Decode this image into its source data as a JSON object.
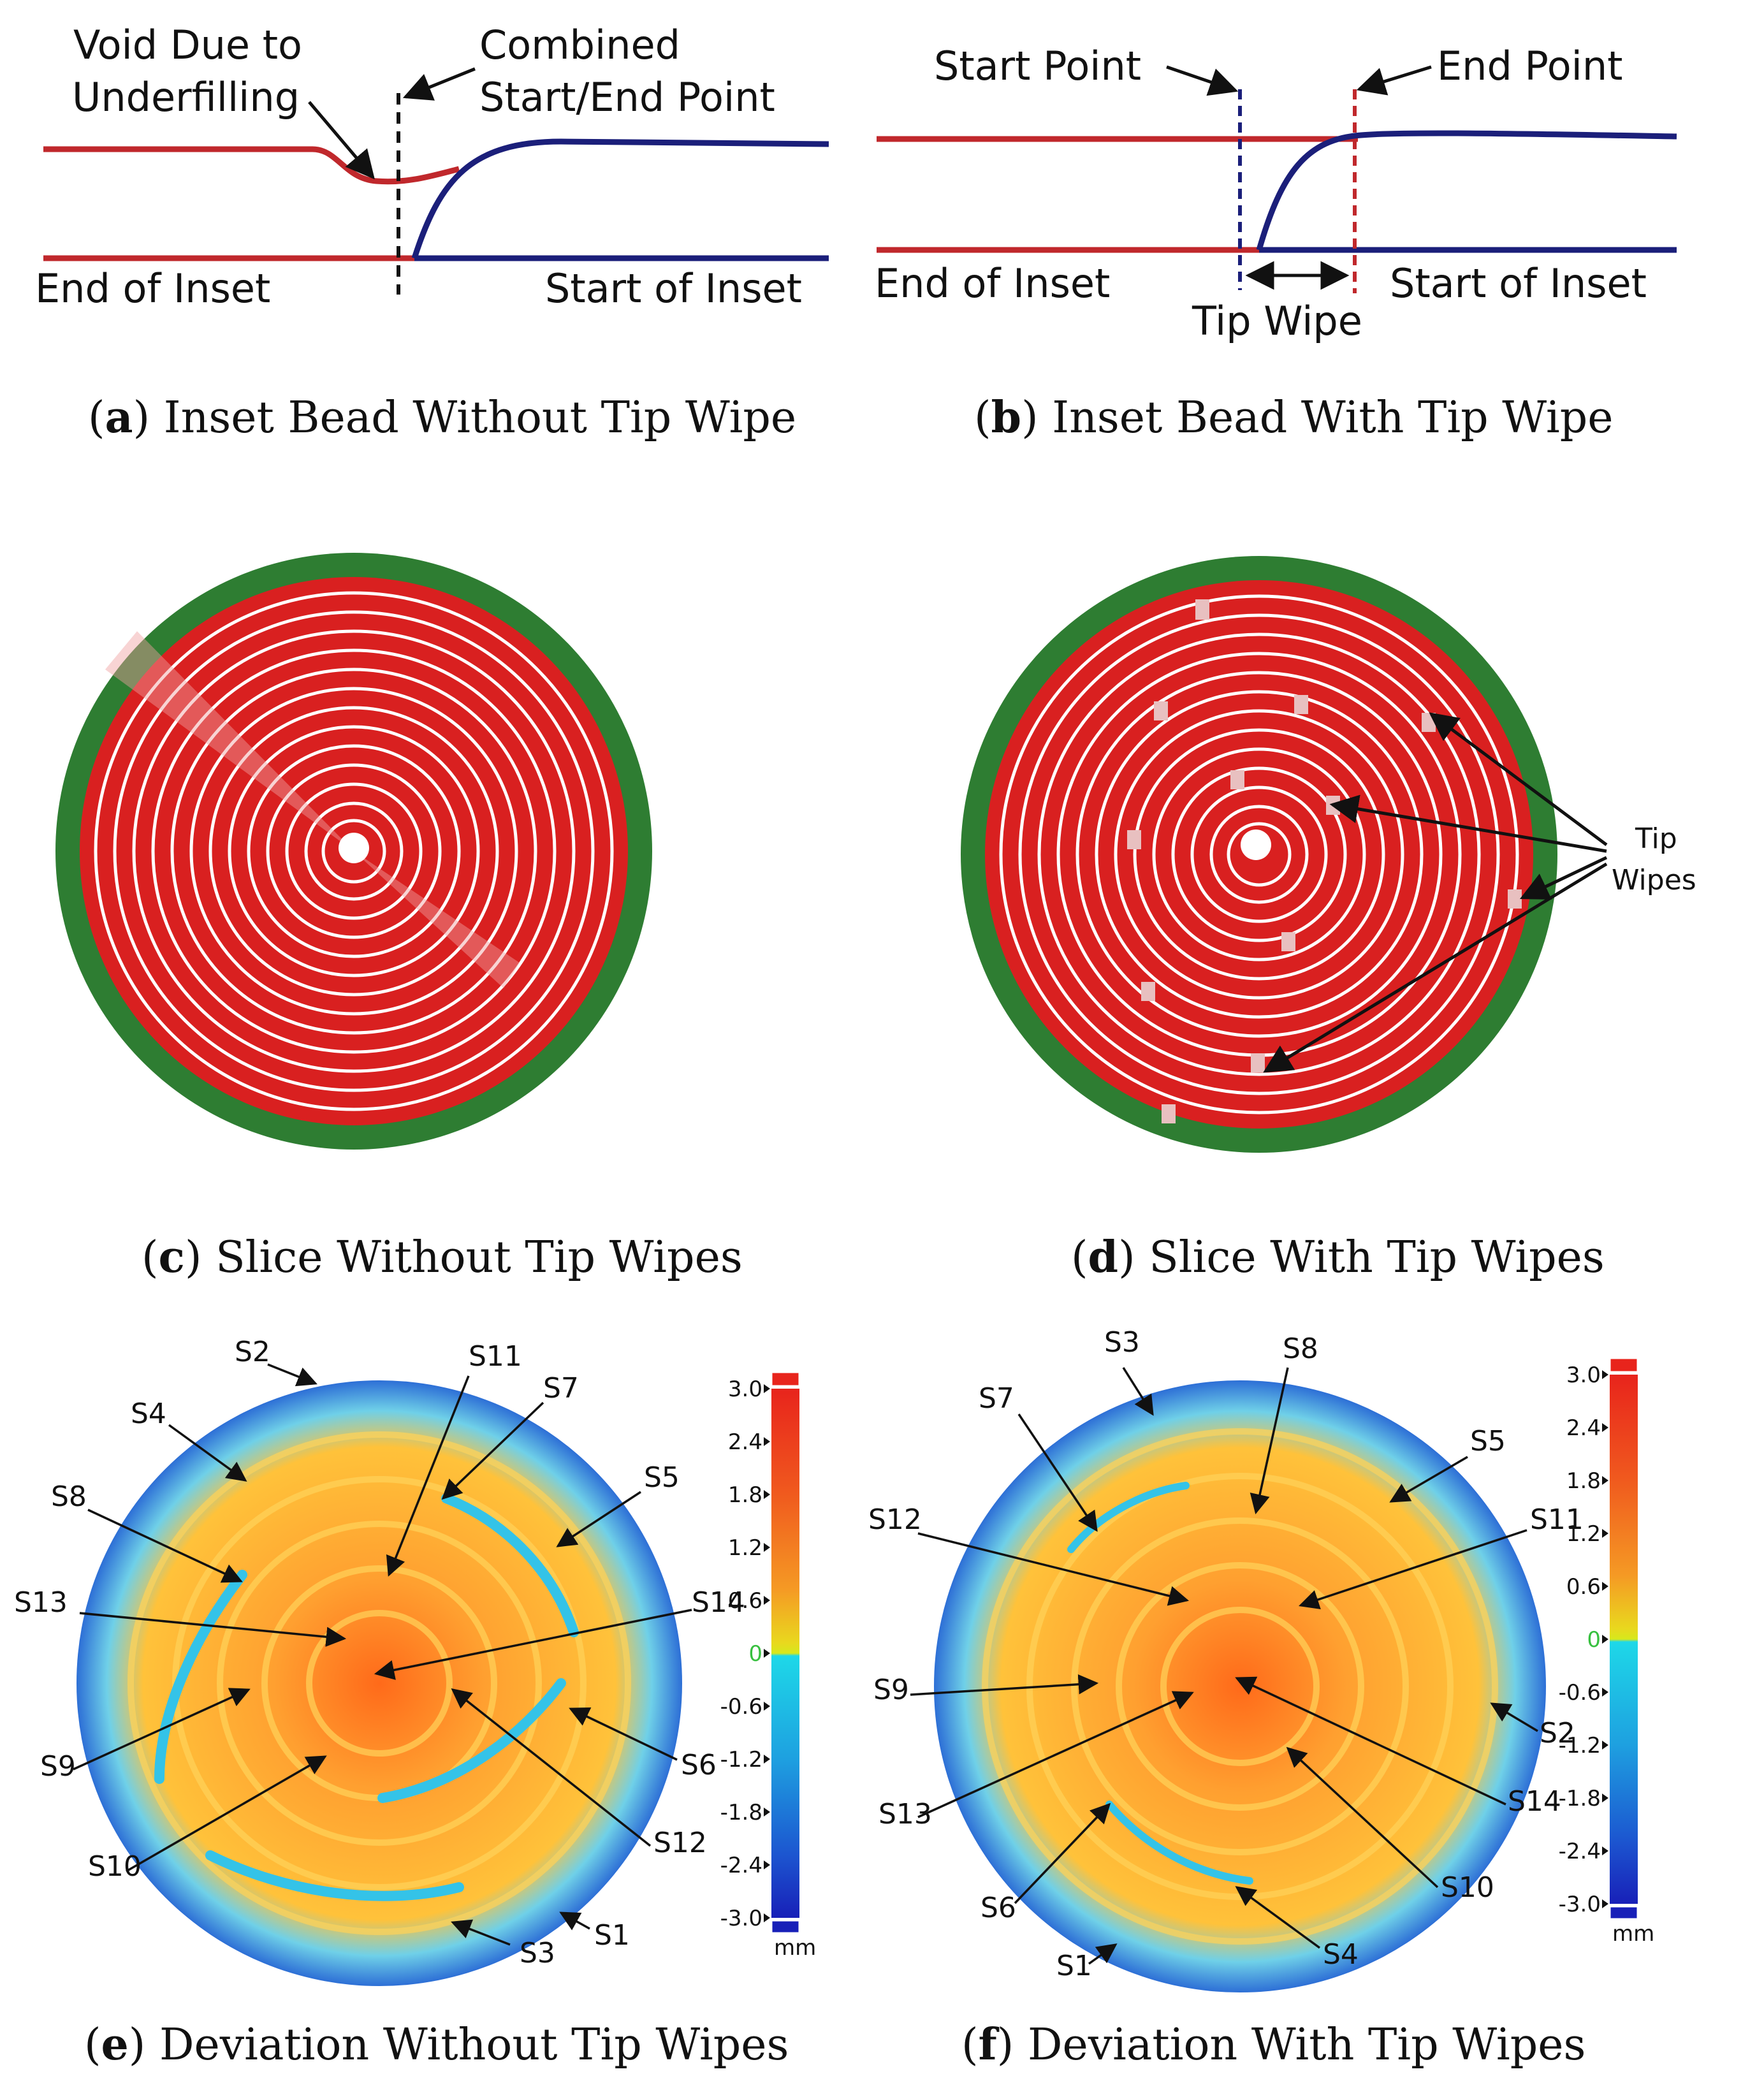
{
  "panel_a": {
    "caption_letter": "a",
    "caption_text": "Inset Bead Without Tip Wipe",
    "void_line1": "Void Due to",
    "void_line2": "Underfilling",
    "combined_line1": "Combined",
    "combined_line2": "Start/End Point",
    "end_of_inset": "End of Inset",
    "start_of_inset": "Start of Inset"
  },
  "panel_b": {
    "caption_letter": "b",
    "caption_text": "Inset Bead With Tip Wipe",
    "start_point": "Start Point",
    "end_point": "End Point",
    "end_of_inset": "End of Inset",
    "start_of_inset": "Start of Inset",
    "tip_wipe": "Tip Wipe"
  },
  "panel_c": {
    "caption_letter": "c",
    "caption_text": "Slice Without Tip Wipes"
  },
  "panel_d": {
    "caption_letter": "d",
    "caption_text": "Slice With Tip Wipes",
    "tip_label_1": "Tip",
    "tip_label_2": "Wipes"
  },
  "panel_e": {
    "caption_letter": "e",
    "caption_text": "Deviation Without Tip Wipes",
    "labels": [
      "S1",
      "S2",
      "S3",
      "S4",
      "S5",
      "S6",
      "S7",
      "S8",
      "S9",
      "S10",
      "S11",
      "S12",
      "S13",
      "S14"
    ]
  },
  "panel_f": {
    "caption_letter": "f",
    "caption_text": "Deviation With Tip Wipes",
    "labels": [
      "S1",
      "S2",
      "S3",
      "S4",
      "S5",
      "S6",
      "S7",
      "S8",
      "S9",
      "S10",
      "S11",
      "S12",
      "S13",
      "S14"
    ]
  },
  "colorbar": {
    "ticks": [
      "3.0",
      "2.4",
      "1.8",
      "1.2",
      "0.6",
      "0",
      "-0.6",
      "-1.2",
      "-1.8",
      "-2.4",
      "-3.0"
    ],
    "unit": "mm"
  },
  "colors": {
    "red_bead": "#c0282c",
    "blue_bead": "#1b1f7a",
    "green_rim": "#2e7d32",
    "slice_red": "#d92020"
  }
}
